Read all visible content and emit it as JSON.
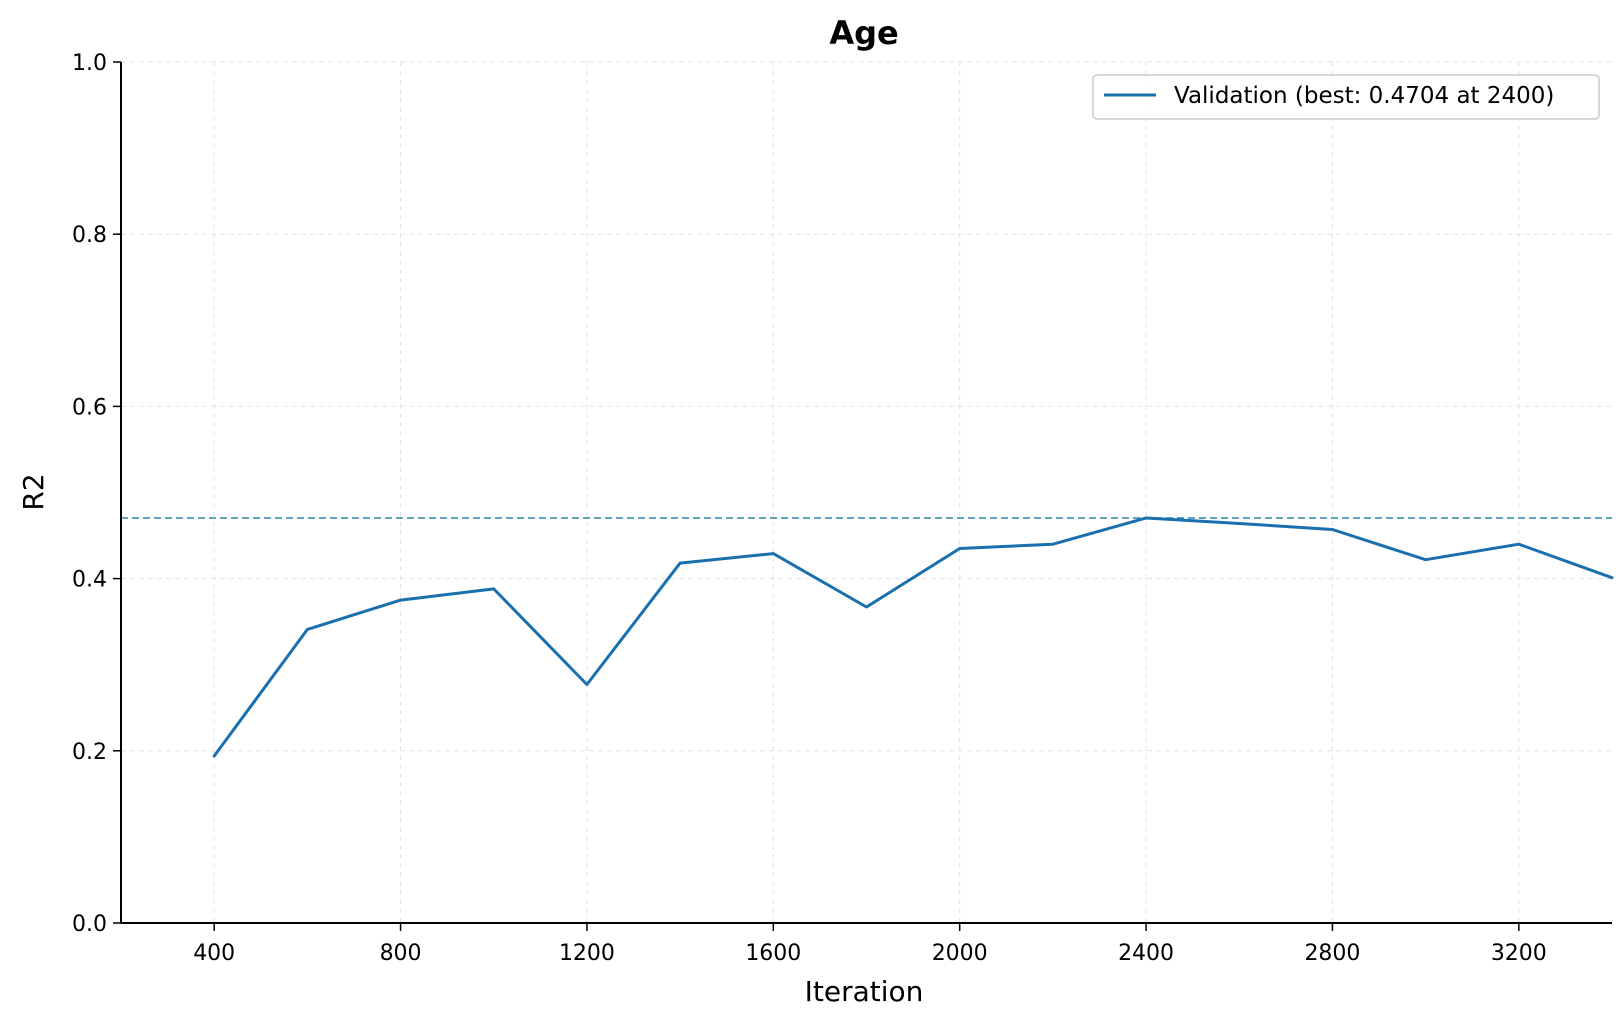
{
  "chart_data": {
    "type": "line",
    "title": "Age",
    "xlabel": "Iteration",
    "ylabel": "R2",
    "xlim": [
      200,
      3400
    ],
    "ylim": [
      0.0,
      1.0
    ],
    "x_ticks": [
      400,
      800,
      1200,
      1600,
      2000,
      2400,
      2800,
      3200
    ],
    "x_tick_labels": [
      "400",
      "800",
      "1200",
      "1600",
      "2000",
      "2400",
      "2800",
      "3200"
    ],
    "y_ticks": [
      0.0,
      0.2,
      0.4,
      0.6,
      0.8,
      1.0
    ],
    "y_tick_labels": [
      "0.0",
      "0.2",
      "0.4",
      "0.6",
      "0.8",
      "1.0"
    ],
    "grid": true,
    "legend_position": "top-right",
    "series": [
      {
        "name": "Validation (best: 0.4704 at 2400)",
        "color": "#1a6fae",
        "x": [
          400,
          600,
          800,
          1000,
          1200,
          1400,
          1600,
          1800,
          2000,
          2200,
          2400,
          2600,
          2800,
          3000,
          3200,
          3400
        ],
        "y": [
          0.194,
          0.341,
          0.375,
          0.388,
          0.277,
          0.418,
          0.429,
          0.367,
          0.435,
          0.44,
          0.4704,
          0.464,
          0.457,
          0.422,
          0.44,
          0.401
        ]
      }
    ],
    "reference_lines": [
      {
        "value": 0.4704,
        "color": "#2e86ab",
        "style": "dashed"
      }
    ]
  }
}
